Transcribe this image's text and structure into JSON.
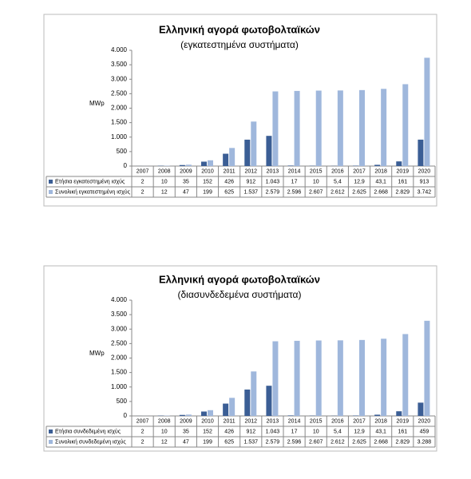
{
  "chart_data": [
    {
      "type": "bar",
      "title": "Ελληνική αγορά φωτοβολταϊκών",
      "subtitle": "(εγκατεστημένα συστήματα)",
      "y_label": "MWp",
      "categories": [
        "2007",
        "2008",
        "2009",
        "2010",
        "2011",
        "2012",
        "2013",
        "2014",
        "2015",
        "2016",
        "2017",
        "2018",
        "2019",
        "2020"
      ],
      "series": [
        {
          "name": "Ετήσια εγκατεστημένη ισχύς",
          "color": "#3b5e95",
          "values": [
            2,
            10,
            35,
            152,
            426,
            912,
            1043,
            17,
            10,
            5.4,
            12.9,
            43.1,
            161,
            913
          ],
          "value_labels": [
            "2",
            "10",
            "35",
            "152",
            "426",
            "912",
            "1.043",
            "17",
            "10",
            "5,4",
            "12,9",
            "43,1",
            "161",
            "913"
          ]
        },
        {
          "name": "Συνολική εγκατεστημένη ισχύς",
          "color": "#9fb7dc",
          "values": [
            2,
            12,
            47,
            199,
            625,
            1537,
            2579,
            2596,
            2607,
            2612,
            2625,
            2668,
            2829,
            3742
          ],
          "value_labels": [
            "2",
            "12",
            "47",
            "199",
            "625",
            "1.537",
            "2.579",
            "2.596",
            "2.607",
            "2.612",
            "2.625",
            "2.668",
            "2.829",
            "3.742"
          ]
        }
      ],
      "ylim": [
        0,
        4000
      ],
      "yticks": [
        0,
        500,
        {
          "value": 1000,
          "label": "1.000"
        },
        {
          "value": 1500,
          "label": "1.500"
        },
        {
          "value": 2000,
          "label": "2.000"
        },
        {
          "value": 2500,
          "label": "2.500"
        },
        {
          "value": 3000,
          "label": "3.000"
        },
        {
          "value": 3500,
          "label": "3.500"
        },
        {
          "value": 4000,
          "label": "4.000"
        }
      ]
    },
    {
      "type": "bar",
      "title": "Ελληνική αγορά φωτοβολταϊκών",
      "subtitle": "(διασυνδεδεμένα συστήματα)",
      "y_label": "MWp",
      "categories": [
        "2007",
        "2008",
        "2009",
        "2010",
        "2011",
        "2012",
        "2013",
        "2014",
        "2015",
        "2016",
        "2017",
        "2018",
        "2019",
        "2020"
      ],
      "series": [
        {
          "name": "Ετήσια συνδεδεμένη ισχύς",
          "color": "#3b5e95",
          "values": [
            2,
            10,
            35,
            152,
            426,
            912,
            1043,
            17,
            10,
            5.4,
            12.9,
            43.1,
            161,
            459
          ],
          "value_labels": [
            "2",
            "10",
            "35",
            "152",
            "426",
            "912",
            "1.043",
            "17",
            "10",
            "5,4",
            "12,9",
            "43,1",
            "161",
            "459"
          ]
        },
        {
          "name": "Συνολική συνδεδεμένη ισχύς",
          "color": "#9fb7dc",
          "values": [
            2,
            12,
            47,
            199,
            625,
            1537,
            2579,
            2596,
            2607,
            2612,
            2625,
            2668,
            2829,
            3288
          ],
          "value_labels": [
            "2",
            "12",
            "47",
            "199",
            "625",
            "1.537",
            "2.579",
            "2.596",
            "2.607",
            "2.612",
            "2.625",
            "2.668",
            "2.829",
            "3.288"
          ]
        }
      ],
      "ylim": [
        0,
        4000
      ],
      "yticks": [
        0,
        500,
        {
          "value": 1000,
          "label": "1.000"
        },
        {
          "value": 1500,
          "label": "1.500"
        },
        {
          "value": 2000,
          "label": "2.000"
        },
        {
          "value": 2500,
          "label": "2.500"
        },
        {
          "value": 3000,
          "label": "3.000"
        },
        {
          "value": 3500,
          "label": "3.500"
        },
        {
          "value": 4000,
          "label": "4.000"
        }
      ]
    }
  ]
}
